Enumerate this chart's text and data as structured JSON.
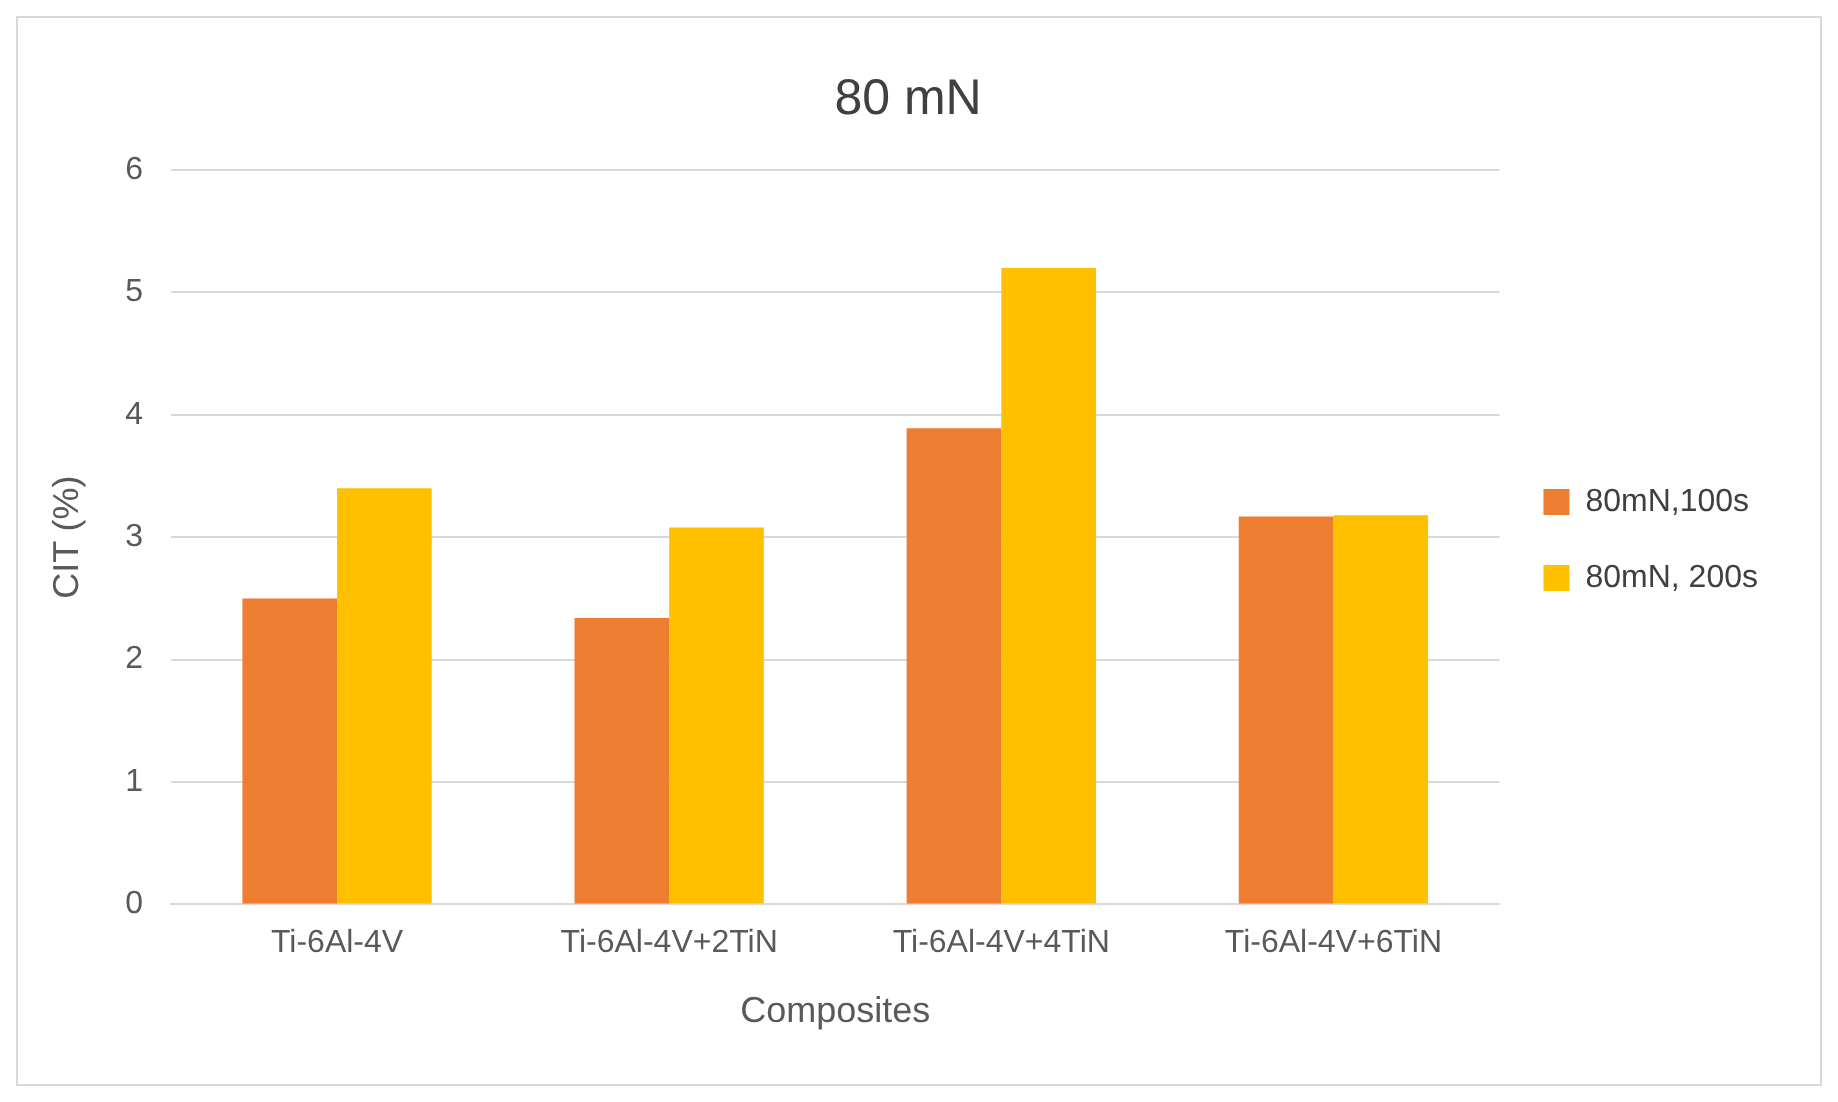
{
  "chart_data": {
    "type": "bar",
    "title": "80 mN",
    "xlabel": "Composites",
    "ylabel": "CIT (%)",
    "categories": [
      "Ti-6Al-4V",
      "Ti-6Al-4V+2TiN",
      "Ti-6Al-4V+4TiN",
      "Ti-6Al-4V+6TiN"
    ],
    "series": [
      {
        "name": "80mN,100s",
        "color": "#ed7d31",
        "values": [
          2.5,
          2.34,
          3.89,
          3.17
        ]
      },
      {
        "name": "80mN, 200s",
        "color": "#ffc000",
        "values": [
          3.4,
          3.08,
          5.2,
          3.18
        ]
      }
    ],
    "ylim": [
      0,
      6
    ],
    "yticks": [
      0,
      1,
      2,
      3,
      4,
      5,
      6
    ],
    "grid": "y",
    "legend": "right"
  }
}
